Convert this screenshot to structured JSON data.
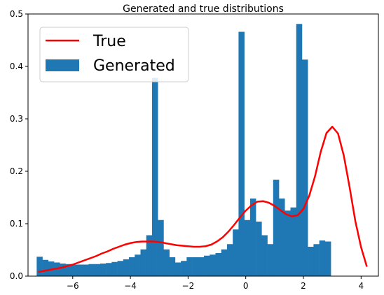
{
  "chart_data": {
    "type": "histogram+line",
    "title": "Generated and true distributions",
    "xlabel": "",
    "ylabel": "",
    "xlim": [
      -7.55,
      4.6
    ],
    "ylim": [
      0.0,
      0.5
    ],
    "xticks": [
      -6,
      -4,
      -2,
      0,
      2,
      4
    ],
    "xtick_labels": [
      "−6",
      "−4",
      "−2",
      "0",
      "2",
      "4"
    ],
    "yticks": [
      0.0,
      0.1,
      0.2,
      0.3,
      0.4,
      0.5
    ],
    "ytick_labels": [
      "0.0",
      "0.1",
      "0.2",
      "0.3",
      "0.4",
      "0.5"
    ],
    "legend": {
      "position": "upper-left",
      "entries": [
        {
          "label": "True",
          "kind": "line",
          "color": "#ff0000"
        },
        {
          "label": "Generated",
          "kind": "patch",
          "color": "#1f77b4"
        }
      ]
    },
    "series": [
      {
        "name": "Generated",
        "kind": "histogram",
        "color": "#1f77b4",
        "bin_start": -7.25,
        "bin_width": 0.2,
        "values": [
          0.037,
          0.031,
          0.028,
          0.026,
          0.024,
          0.023,
          0.022,
          0.022,
          0.022,
          0.023,
          0.023,
          0.024,
          0.025,
          0.027,
          0.029,
          0.032,
          0.036,
          0.041,
          0.051,
          0.078,
          0.378,
          0.107,
          0.051,
          0.036,
          0.026,
          0.029,
          0.036,
          0.036,
          0.036,
          0.039,
          0.041,
          0.044,
          0.051,
          0.061,
          0.089,
          0.466,
          0.107,
          0.148,
          0.104,
          0.078,
          0.061,
          0.184,
          0.148,
          0.125,
          0.131,
          0.481,
          0.413,
          0.056,
          0.061,
          0.068,
          0.066
        ]
      },
      {
        "name": "True",
        "kind": "line",
        "color": "#ff0000",
        "x": [
          -7.2,
          -7.0,
          -6.8,
          -6.6,
          -6.4,
          -6.2,
          -6.0,
          -5.8,
          -5.6,
          -5.4,
          -5.2,
          -5.0,
          -4.8,
          -4.6,
          -4.4,
          -4.2,
          -4.0,
          -3.8,
          -3.6,
          -3.4,
          -3.2,
          -3.0,
          -2.8,
          -2.6,
          -2.4,
          -2.2,
          -2.0,
          -1.8,
          -1.6,
          -1.4,
          -1.2,
          -1.0,
          -0.8,
          -0.6,
          -0.4,
          -0.2,
          0.0,
          0.2,
          0.4,
          0.6,
          0.8,
          1.0,
          1.2,
          1.4,
          1.6,
          1.8,
          2.0,
          2.2,
          2.4,
          2.6,
          2.8,
          3.0,
          3.2,
          3.4,
          3.6,
          3.8,
          4.0,
          4.2
        ],
        "y": [
          0.008,
          0.01,
          0.012,
          0.014,
          0.016,
          0.019,
          0.022,
          0.026,
          0.03,
          0.034,
          0.038,
          0.043,
          0.047,
          0.052,
          0.056,
          0.06,
          0.063,
          0.065,
          0.066,
          0.066,
          0.066,
          0.065,
          0.063,
          0.061,
          0.059,
          0.058,
          0.057,
          0.056,
          0.056,
          0.057,
          0.06,
          0.066,
          0.074,
          0.085,
          0.098,
          0.112,
          0.125,
          0.135,
          0.142,
          0.143,
          0.14,
          0.134,
          0.126,
          0.118,
          0.114,
          0.116,
          0.128,
          0.153,
          0.19,
          0.237,
          0.273,
          0.285,
          0.272,
          0.23,
          0.17,
          0.105,
          0.055,
          0.018
        ]
      }
    ]
  }
}
